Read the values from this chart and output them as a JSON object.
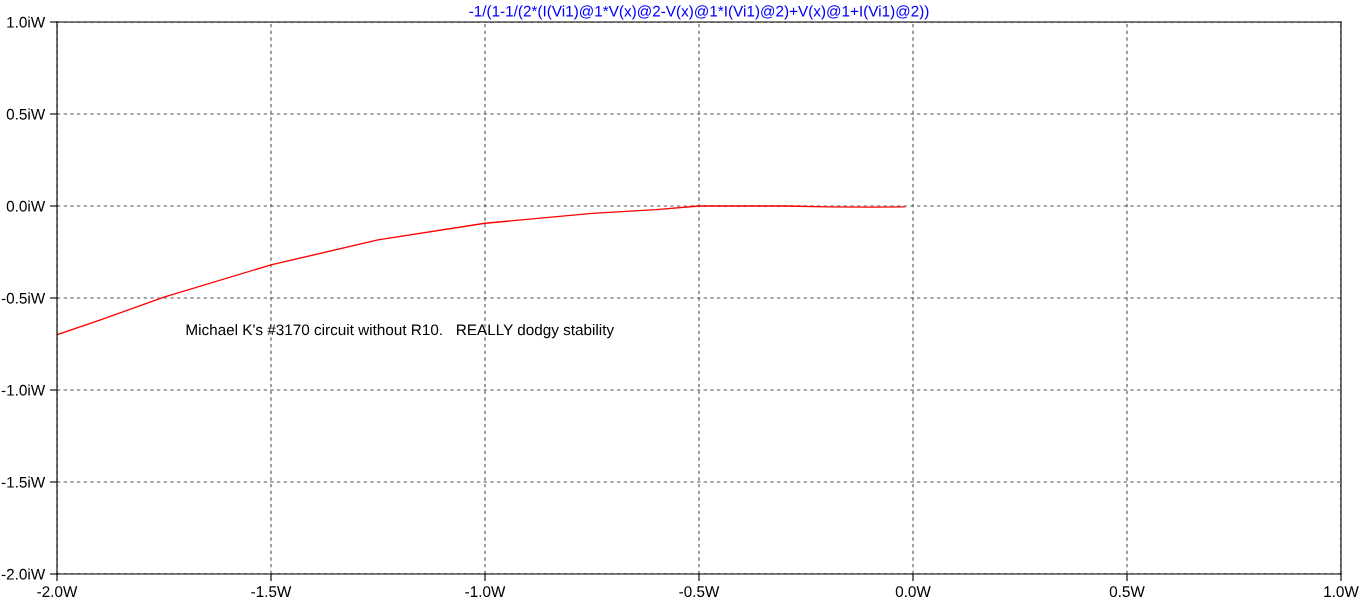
{
  "chart_data": {
    "type": "line",
    "title": "-1/(1-1/(2*(I(Vi1)@1*V(x)@2-V(x)@1*I(Vi1)@2)+V(x)@1+I(Vi1)@2))",
    "x": [
      -2.0,
      -1.9,
      -1.75,
      -1.5,
      -1.25,
      -1.0,
      -0.75,
      -0.6,
      -0.5,
      -0.3,
      -0.2,
      -0.1,
      -0.02
    ],
    "series": [
      {
        "color": "#ff0000",
        "values": [
          -0.7,
          -0.62,
          -0.495,
          -0.32,
          -0.184,
          -0.094,
          -0.04,
          -0.02,
          0.0,
          0.0,
          -0.005,
          -0.006,
          -0.005
        ]
      }
    ],
    "xlim": [
      -2.0,
      1.0
    ],
    "ylim": [
      -2.0,
      1.0
    ],
    "xticks": [
      {
        "value": -2.0,
        "label": "-2.0W"
      },
      {
        "value": -1.5,
        "label": "-1.5W"
      },
      {
        "value": -1.0,
        "label": "-1.0W"
      },
      {
        "value": -0.5,
        "label": "-0.5W"
      },
      {
        "value": 0.0,
        "label": "0.0W"
      },
      {
        "value": 0.5,
        "label": "0.5W"
      },
      {
        "value": 1.0,
        "label": "1.0W"
      }
    ],
    "yticks": [
      {
        "value": -2.0,
        "label": "-2.0iW"
      },
      {
        "value": -1.5,
        "label": "-1.5iW"
      },
      {
        "value": -1.0,
        "label": "-1.0iW"
      },
      {
        "value": -0.5,
        "label": "-0.5iW"
      },
      {
        "value": 0.0,
        "label": "0.0iW"
      },
      {
        "value": 0.5,
        "label": "0.5iW"
      },
      {
        "value": 1.0,
        "label": "1.0iW"
      }
    ],
    "grid": true,
    "line_style": "solid",
    "marker": "none",
    "annotations": [
      "Michael K's #3170 circuit without R10.   REALLY dodgy stability"
    ]
  }
}
